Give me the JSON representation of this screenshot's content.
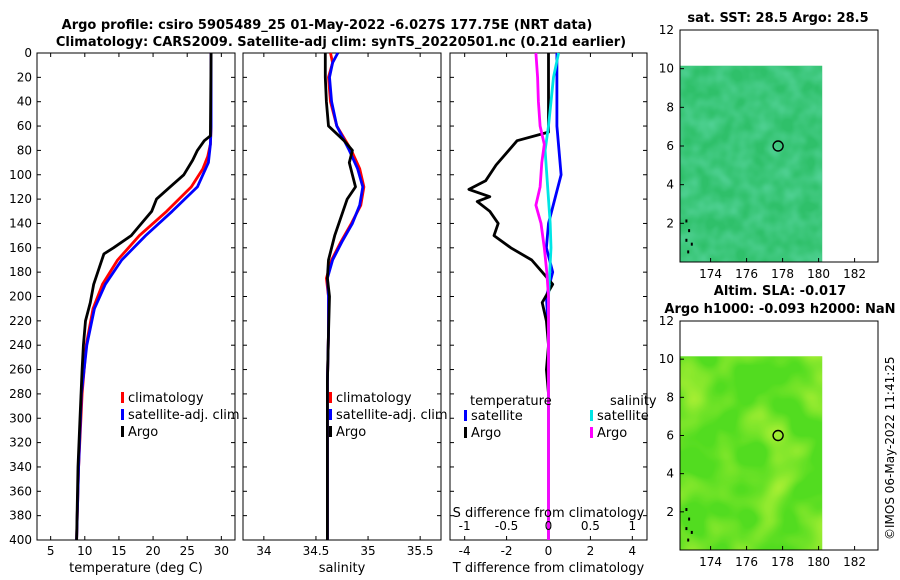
{
  "titles": {
    "line1": "Argo profile: csiro 5905489_25 01-May-2022 -6.027S 177.75E (NRT data)",
    "line2": "Climatology: CARS2009. Satellite-adj clim: synTS_20220501.nc (0.21d earlier)",
    "map1": "sat. SST: 28.5 Argo: 28.5",
    "map2a": "Altim. SLA: -0.017",
    "map2b": "Argo h1000: -0.093 h2000: NaN",
    "credit": "©IMOS 06-May-2022 11:41:25"
  },
  "colors": {
    "climatology": "#ff0000",
    "satellite": "#0000ff",
    "argo": "#000000",
    "sal_sat": "#00e5e5",
    "sal_argo": "#ff00ff",
    "sst_field": "#2fc06a",
    "sla_field": "#52dc20"
  },
  "chart_data": [
    {
      "type": "line",
      "id": "temperature",
      "xlabel": "temperature (deg C)",
      "ylabel": "",
      "xlim": [
        3,
        32
      ],
      "ylim": [
        400,
        0
      ],
      "xticks": [
        "5",
        "10",
        "15",
        "20",
        "25",
        "30"
      ],
      "yticks": [
        "0",
        "20",
        "40",
        "60",
        "80",
        "100",
        "120",
        "140",
        "160",
        "180",
        "200",
        "220",
        "240",
        "260",
        "280",
        "300",
        "320",
        "340",
        "360",
        "380",
        "400"
      ],
      "legend": [
        "climatology",
        "satellite-adj. clim",
        "Argo"
      ],
      "series": [
        {
          "name": "climatology",
          "depth": [
            0,
            60,
            75,
            85,
            95,
            110,
            130,
            150,
            170,
            190,
            210,
            240,
            280,
            340,
            400
          ],
          "values": [
            28.5,
            28.5,
            28.4,
            28.0,
            27.3,
            25.6,
            22.0,
            18.0,
            14.8,
            12.6,
            11.2,
            10.2,
            9.6,
            9.1,
            8.8
          ]
        },
        {
          "name": "satellite-adj. clim",
          "depth": [
            0,
            60,
            75,
            90,
            110,
            130,
            150,
            170,
            190,
            210,
            240,
            280,
            340,
            400
          ],
          "values": [
            28.5,
            28.5,
            28.4,
            28.1,
            26.5,
            22.8,
            18.9,
            15.4,
            13.0,
            11.4,
            10.3,
            9.5,
            9.1,
            8.8
          ]
        },
        {
          "name": "Argo",
          "depth": [
            0,
            68,
            72,
            80,
            88,
            100,
            110,
            120,
            130,
            140,
            150,
            160,
            165,
            175,
            190,
            205,
            220,
            240,
            260,
            300,
            340,
            400
          ],
          "values": [
            28.5,
            28.4,
            27.5,
            26.5,
            25.8,
            24.5,
            22.5,
            20.5,
            19.8,
            18.3,
            16.8,
            14.2,
            12.8,
            12.2,
            11.3,
            10.8,
            10.1,
            9.8,
            9.6,
            9.3,
            9.0,
            8.8
          ]
        }
      ]
    },
    {
      "type": "line",
      "id": "salinity",
      "xlabel": "salinity",
      "xlim": [
        33.8,
        35.7
      ],
      "ylim": [
        400,
        0
      ],
      "xticks": [
        "34",
        "34.5",
        "35",
        "35.5"
      ],
      "legend": [
        "climatology",
        "satellite-adj. clim",
        "Argo"
      ],
      "series": [
        {
          "name": "climatology",
          "depth": [
            0,
            8,
            20,
            40,
            60,
            80,
            95,
            110,
            125,
            140,
            155,
            170,
            185,
            200,
            230,
            270,
            320,
            400
          ],
          "values": [
            34.64,
            34.66,
            34.62,
            34.64,
            34.7,
            34.84,
            34.92,
            34.96,
            34.93,
            34.84,
            34.74,
            34.65,
            34.6,
            34.62,
            34.62,
            34.61,
            34.61,
            34.61
          ]
        },
        {
          "name": "satellite-adj. clim",
          "depth": [
            0,
            8,
            20,
            40,
            60,
            80,
            95,
            110,
            125,
            140,
            155,
            170,
            185,
            200,
            230,
            270,
            320,
            400
          ],
          "values": [
            34.71,
            34.66,
            34.63,
            34.65,
            34.7,
            34.82,
            34.9,
            34.95,
            34.92,
            34.85,
            34.75,
            34.66,
            34.61,
            34.62,
            34.62,
            34.61,
            34.61,
            34.61
          ]
        },
        {
          "name": "Argo",
          "depth": [
            0,
            20,
            40,
            60,
            72,
            80,
            90,
            100,
            110,
            120,
            130,
            150,
            170,
            185,
            200,
            230,
            270,
            320,
            400
          ],
          "values": [
            34.59,
            34.59,
            34.6,
            34.62,
            34.77,
            34.85,
            34.82,
            34.85,
            34.88,
            34.8,
            34.76,
            34.68,
            34.62,
            34.61,
            34.63,
            34.62,
            34.61,
            34.61,
            34.61
          ]
        }
      ]
    },
    {
      "type": "line",
      "id": "difference",
      "xlabel": "T difference from climatology",
      "xlabel_top": "S difference from climatology",
      "xlim": [
        -4.7,
        4.7
      ],
      "ylim": [
        400,
        0
      ],
      "xticks": [
        "-4",
        "-2",
        "0",
        "2",
        "4"
      ],
      "xticks_top": [
        "-1",
        "-0.5",
        "0",
        "0.5",
        "1"
      ],
      "legend_titles": [
        "temperature",
        "salinity"
      ],
      "legend": [
        "satellite",
        "Argo",
        "satellite",
        "Argo"
      ],
      "series": [
        {
          "name": "temperature satellite",
          "depth": [
            0,
            60,
            80,
            100,
            120,
            140,
            160,
            180,
            200,
            230,
            260,
            300,
            400
          ],
          "values": [
            0.4,
            0.4,
            0.5,
            0.6,
            0.3,
            0.0,
            -0.1,
            0.2,
            -0.1,
            0.0,
            0.0,
            0.0,
            0.0
          ]
        },
        {
          "name": "temperature Argo",
          "depth": [
            0,
            65,
            72,
            80,
            92,
            105,
            112,
            118,
            122,
            130,
            140,
            150,
            160,
            170,
            180,
            190,
            205,
            220,
            240,
            260,
            280,
            400
          ],
          "values": [
            0.0,
            0.0,
            -1.5,
            -1.9,
            -2.5,
            -3.0,
            -3.8,
            -2.8,
            -3.4,
            -2.8,
            -2.4,
            -2.6,
            -1.8,
            -0.8,
            -0.3,
            0.2,
            -0.3,
            -0.1,
            0.0,
            -0.1,
            0.0,
            0.0
          ]
        },
        {
          "name": "salinity satellite",
          "depth": [
            0,
            20,
            40,
            60,
            80,
            100,
            120,
            140,
            160,
            200,
            260,
            400
          ],
          "values": [
            0.12,
            0.06,
            0.03,
            0.0,
            -0.04,
            -0.02,
            0.0,
            0.02,
            0.03,
            0.0,
            0.0,
            0.0
          ]
        },
        {
          "name": "salinity Argo",
          "depth": [
            0,
            20,
            40,
            60,
            75,
            90,
            110,
            125,
            140,
            160,
            180,
            200,
            230,
            260,
            300,
            400
          ],
          "values": [
            -0.15,
            -0.13,
            -0.12,
            -0.1,
            -0.05,
            -0.08,
            -0.1,
            -0.15,
            -0.09,
            -0.05,
            -0.02,
            0.0,
            0.0,
            0.0,
            0.0,
            0.0
          ]
        }
      ]
    },
    {
      "type": "heatmap",
      "id": "sst_map",
      "title": "sat. SST: 28.5 Argo: 28.5",
      "xlim": [
        172.3,
        183.3
      ],
      "ylim": [
        0,
        12
      ],
      "xticks": [
        "174",
        "176",
        "178",
        "180",
        "182"
      ],
      "yticks": [
        "2",
        "4",
        "6",
        "8",
        "10",
        "12"
      ],
      "argo_position": [
        177.75,
        6.0
      ]
    },
    {
      "type": "heatmap",
      "id": "sla_map",
      "title": "Argo h1000: -0.093 h2000: NaN",
      "xlim": [
        172.3,
        183.3
      ],
      "ylim": [
        0,
        12
      ],
      "xticks": [
        "174",
        "176",
        "178",
        "180",
        "182"
      ],
      "yticks": [
        "2",
        "4",
        "6",
        "8",
        "10",
        "12"
      ],
      "argo_position": [
        177.75,
        6.0
      ]
    }
  ]
}
